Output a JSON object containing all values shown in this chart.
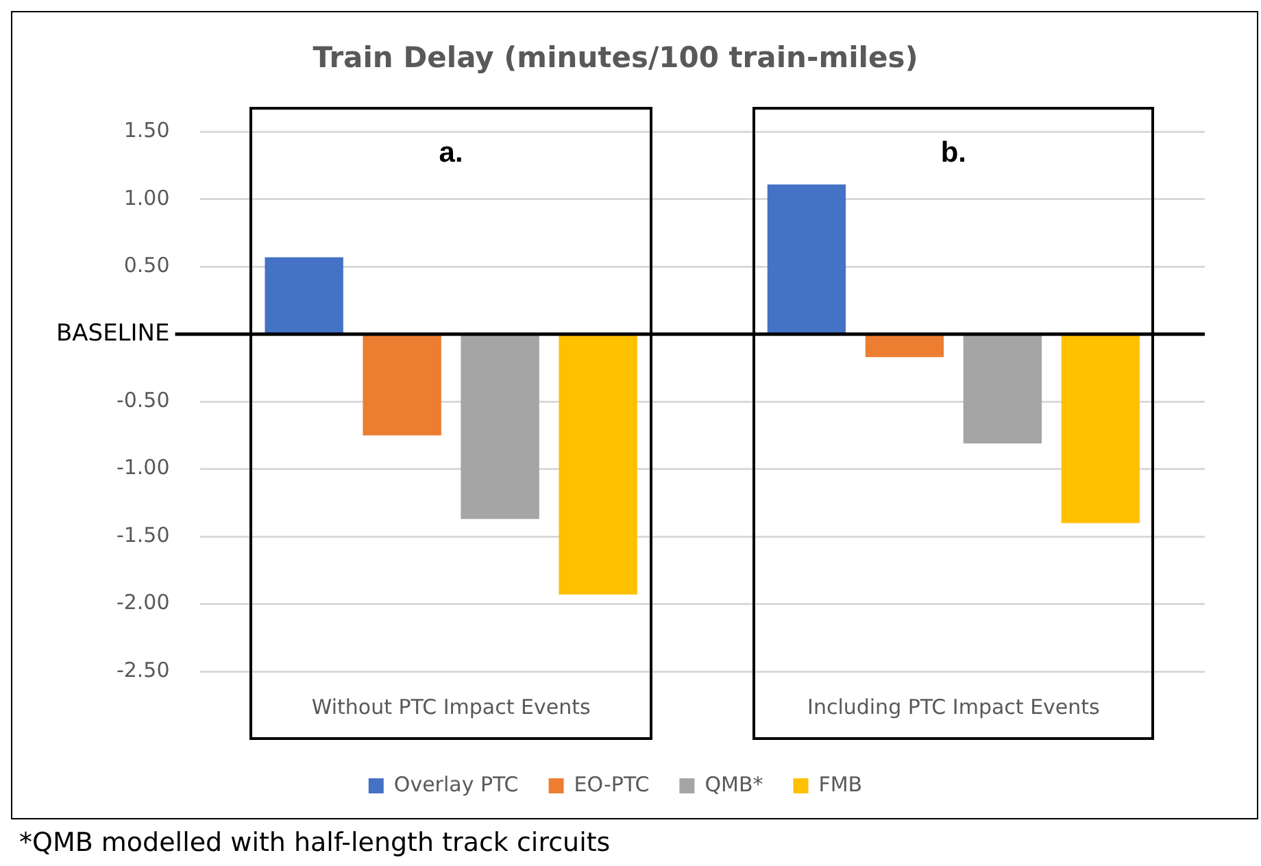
{
  "chart_data": {
    "type": "bar",
    "title": "Train Delay (minutes/100 train-miles)",
    "categories": [
      "Without PTC Impact Events",
      "Including PTC Impact Events"
    ],
    "series": [
      {
        "name": "Overlay PTC",
        "color": "#4472c4",
        "values": [
          0.57,
          1.11
        ]
      },
      {
        "name": "EO-PTC",
        "color": "#ed7d31",
        "values": [
          -0.75,
          -0.17
        ]
      },
      {
        "name": "QMB*",
        "color": "#a5a5a5",
        "values": [
          -1.37,
          -0.81
        ]
      },
      {
        "name": "FMB",
        "color": "#ffc000",
        "values": [
          -1.93,
          -1.4
        ]
      }
    ],
    "ylim": [
      -2.5,
      1.5
    ],
    "yticks": [
      {
        "value": 1.5,
        "label": "1.50"
      },
      {
        "value": 1,
        "label": "1.00"
      },
      {
        "value": 0.5,
        "label": "0.50"
      },
      {
        "value": 0,
        "label": "BASELINE"
      },
      {
        "value": -0.5,
        "label": "-0.50"
      },
      {
        "value": -1,
        "label": "-1.00"
      },
      {
        "value": -1.5,
        "label": "-1.50"
      },
      {
        "value": -2,
        "label": "-2.00"
      },
      {
        "value": -2.5,
        "label": "-2.50"
      }
    ],
    "ref_lines": [
      {
        "axis": "y",
        "value": 0,
        "color": "#000000"
      }
    ],
    "grid": "y",
    "legend": "bottom",
    "annotations": [
      "a.",
      "b.",
      "*QMB modelled with half-length track circuits"
    ]
  }
}
